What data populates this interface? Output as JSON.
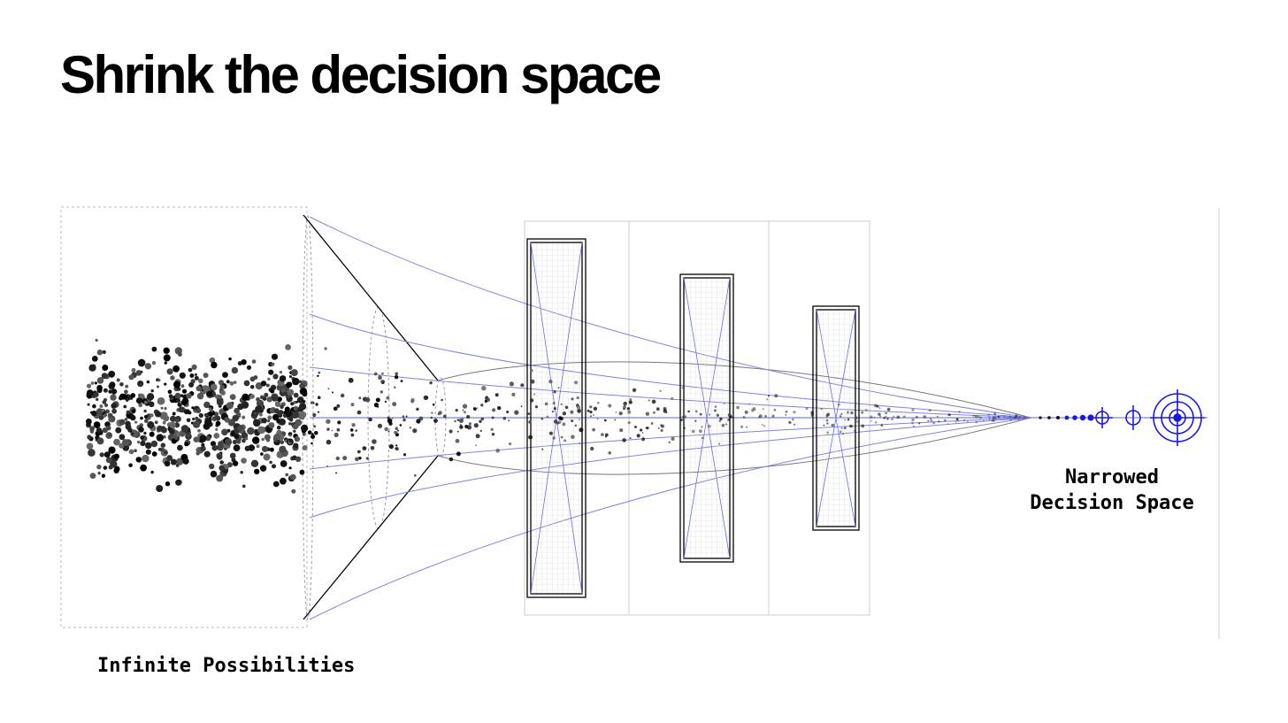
{
  "header": {
    "title": "Shrink the decision space"
  },
  "labels": {
    "start": "Infinite Possibilities",
    "end": [
      "Narrowed",
      "Decision Space"
    ]
  }
}
